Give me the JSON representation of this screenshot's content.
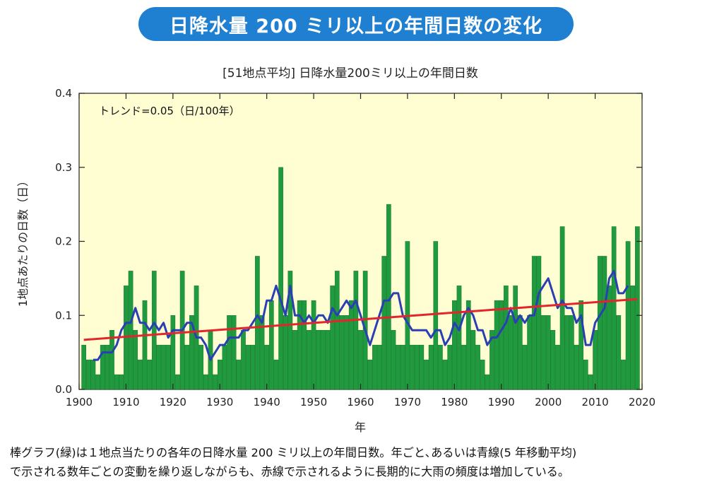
{
  "banner_title": "日降水量 200 ミリ以上の年間日数の変化",
  "caption": {
    "line1": "棒グラフ(緑)は１地点当たりの各年の日降水量 200 ミリ以上の年間日数。年ごと､あるいは青線(5 年移動平均)",
    "line2": "で示される数年ごとの変動を繰り返しながらも、赤線で示されるように長期的に大雨の頻度は増加している。"
  },
  "colors": {
    "banner_bg": "#1f7fd0",
    "plot_bg": "#fefed2",
    "bar": "#1f9a3e",
    "bar_edge": "#0d6b22",
    "moving_average": "#2b3fb4",
    "trend": "#e2262b",
    "axis": "#222222"
  },
  "chart_data": {
    "type": "bar",
    "title": "[51地点平均] 日降水量200ミリ以上の年間日数",
    "annotation": "トレンド=0.05（日/100年）",
    "xlabel": "年",
    "ylabel": "1地点あたりの日数（日）",
    "xlim": [
      1900,
      2020
    ],
    "ylim": [
      0.0,
      0.4
    ],
    "xticks": [
      "1900",
      "1910",
      "1920",
      "1930",
      "1940",
      "1950",
      "1960",
      "1970",
      "1980",
      "1990",
      "2000",
      "2010",
      "2020"
    ],
    "yticks": [
      "0.0",
      "0.1",
      "0.2",
      "0.3",
      "0.4"
    ],
    "grid": false,
    "x": [
      1901,
      1902,
      1903,
      1904,
      1905,
      1906,
      1907,
      1908,
      1909,
      1910,
      1911,
      1912,
      1913,
      1914,
      1915,
      1916,
      1917,
      1918,
      1919,
      1920,
      1921,
      1922,
      1923,
      1924,
      1925,
      1926,
      1927,
      1928,
      1929,
      1930,
      1931,
      1932,
      1933,
      1934,
      1935,
      1936,
      1937,
      1938,
      1939,
      1940,
      1941,
      1942,
      1943,
      1944,
      1945,
      1946,
      1947,
      1948,
      1949,
      1950,
      1951,
      1952,
      1953,
      1954,
      1955,
      1956,
      1957,
      1958,
      1959,
      1960,
      1961,
      1962,
      1963,
      1964,
      1965,
      1966,
      1967,
      1968,
      1969,
      1970,
      1971,
      1972,
      1973,
      1974,
      1975,
      1976,
      1977,
      1978,
      1979,
      1980,
      1981,
      1982,
      1983,
      1984,
      1985,
      1986,
      1987,
      1988,
      1989,
      1990,
      1991,
      1992,
      1993,
      1994,
      1995,
      1996,
      1997,
      1998,
      1999,
      2000,
      2001,
      2002,
      2003,
      2004,
      2005,
      2006,
      2007,
      2008,
      2009,
      2010,
      2011,
      2012,
      2013,
      2014,
      2015,
      2016,
      2017,
      2018,
      2019
    ],
    "series": [
      {
        "name": "日数",
        "kind": "bar",
        "values": [
          0.06,
          0.04,
          0.04,
          0.02,
          0.06,
          0.06,
          0.08,
          0.02,
          0.02,
          0.14,
          0.16,
          0.08,
          0.04,
          0.12,
          0.04,
          0.16,
          0.06,
          0.06,
          0.06,
          0.1,
          0.02,
          0.16,
          0.06,
          0.1,
          0.14,
          0.06,
          0.02,
          0.08,
          0.02,
          0.04,
          0.06,
          0.1,
          0.1,
          0.04,
          0.08,
          0.06,
          0.06,
          0.18,
          0.1,
          0.06,
          0.12,
          0.04,
          0.3,
          0.1,
          0.16,
          0.08,
          0.12,
          0.12,
          0.08,
          0.12,
          0.08,
          0.08,
          0.08,
          0.14,
          0.16,
          0.1,
          0.1,
          0.12,
          0.16,
          0.08,
          0.16,
          0.04,
          0.06,
          0.06,
          0.18,
          0.25,
          0.08,
          0.06,
          0.06,
          0.2,
          0.06,
          0.06,
          0.06,
          0.04,
          0.06,
          0.2,
          0.06,
          0.04,
          0.06,
          0.12,
          0.14,
          0.06,
          0.12,
          0.08,
          0.06,
          0.04,
          0.02,
          0.08,
          0.12,
          0.12,
          0.14,
          0.1,
          0.14,
          0.1,
          0.06,
          0.1,
          0.18,
          0.18,
          0.1,
          0.1,
          0.08,
          0.06,
          0.22,
          0.1,
          0.1,
          0.06,
          0.12,
          0.04,
          0.02,
          0.08,
          0.18,
          0.18,
          0.14,
          0.22,
          0.1,
          0.04,
          0.2,
          0.14,
          0.22
        ]
      },
      {
        "name": "5年移動平均",
        "kind": "line",
        "x": [
          1903,
          1904,
          1905,
          1906,
          1907,
          1908,
          1909,
          1910,
          1911,
          1912,
          1913,
          1914,
          1915,
          1916,
          1917,
          1918,
          1919,
          1920,
          1921,
          1922,
          1923,
          1924,
          1925,
          1926,
          1927,
          1928,
          1929,
          1930,
          1931,
          1932,
          1933,
          1934,
          1935,
          1936,
          1937,
          1938,
          1939,
          1940,
          1941,
          1942,
          1943,
          1944,
          1945,
          1946,
          1947,
          1948,
          1949,
          1950,
          1951,
          1952,
          1953,
          1954,
          1955,
          1956,
          1957,
          1958,
          1959,
          1960,
          1961,
          1962,
          1963,
          1964,
          1965,
          1966,
          1967,
          1968,
          1969,
          1970,
          1971,
          1972,
          1973,
          1974,
          1975,
          1976,
          1977,
          1978,
          1979,
          1980,
          1981,
          1982,
          1983,
          1984,
          1985,
          1986,
          1987,
          1988,
          1989,
          1990,
          1991,
          1992,
          1993,
          1994,
          1995,
          1996,
          1997,
          1998,
          1999,
          2000,
          2001,
          2002,
          2003,
          2004,
          2005,
          2006,
          2007,
          2008,
          2009,
          2010,
          2011,
          2012,
          2013,
          2014,
          2015,
          2016,
          2017
        ],
        "values": [
          0.04,
          0.04,
          0.05,
          0.05,
          0.05,
          0.06,
          0.08,
          0.09,
          0.09,
          0.11,
          0.09,
          0.09,
          0.08,
          0.09,
          0.08,
          0.09,
          0.07,
          0.08,
          0.08,
          0.08,
          0.09,
          0.09,
          0.07,
          0.07,
          0.06,
          0.04,
          0.05,
          0.06,
          0.06,
          0.07,
          0.07,
          0.07,
          0.08,
          0.08,
          0.09,
          0.1,
          0.09,
          0.12,
          0.12,
          0.14,
          0.12,
          0.1,
          0.14,
          0.1,
          0.1,
          0.09,
          0.1,
          0.09,
          0.1,
          0.1,
          0.09,
          0.11,
          0.1,
          0.11,
          0.12,
          0.11,
          0.12,
          0.1,
          0.08,
          0.06,
          0.08,
          0.1,
          0.12,
          0.12,
          0.13,
          0.13,
          0.1,
          0.09,
          0.08,
          0.08,
          0.08,
          0.08,
          0.07,
          0.08,
          0.08,
          0.06,
          0.07,
          0.09,
          0.08,
          0.1,
          0.11,
          0.1,
          0.08,
          0.08,
          0.06,
          0.07,
          0.07,
          0.08,
          0.09,
          0.11,
          0.09,
          0.1,
          0.09,
          0.1,
          0.1,
          0.13,
          0.14,
          0.15,
          0.13,
          0.11,
          0.12,
          0.11,
          0.11,
          0.09,
          0.1,
          0.06,
          0.06,
          0.09,
          0.1,
          0.11,
          0.15,
          0.16,
          0.13,
          0.13,
          0.14
        ]
      },
      {
        "name": "トレンド",
        "kind": "line",
        "x": [
          1901,
          2019
        ],
        "values": [
          0.067,
          0.122
        ]
      }
    ]
  }
}
